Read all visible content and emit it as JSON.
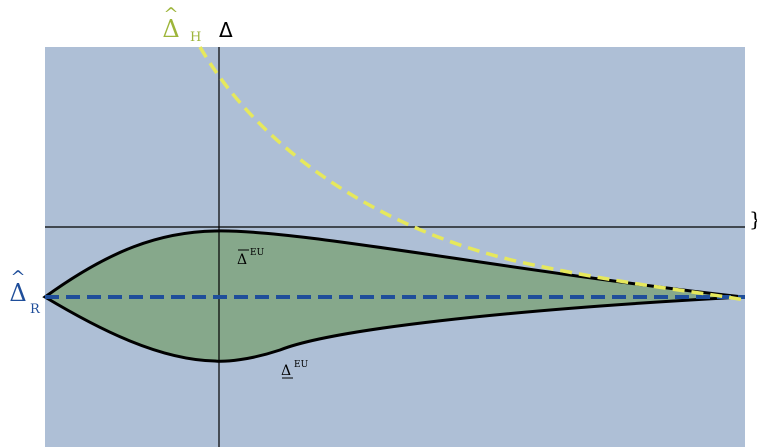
{
  "diagram": {
    "axis_label": "Δ",
    "right_edge_glyph": "}",
    "delta_h": {
      "symbol": "Δ",
      "accent": "^",
      "subscript": "H",
      "color": "#9db53a",
      "curve_color": "#e6e85c"
    },
    "delta_r": {
      "symbol": "Δ",
      "accent": "^",
      "subscript": "R",
      "color": "#1f4e9a",
      "line_color": "#1f4e9a"
    },
    "upper_bound": {
      "symbol": "Δ",
      "superscript": "EU",
      "mark": "overline"
    },
    "lower_bound": {
      "symbol": "Δ",
      "superscript": "EU",
      "mark": "underline"
    },
    "colors": {
      "background": "#aebfd6",
      "region": "#86a88b",
      "outline": "#000000",
      "axis": "#000000"
    }
  }
}
